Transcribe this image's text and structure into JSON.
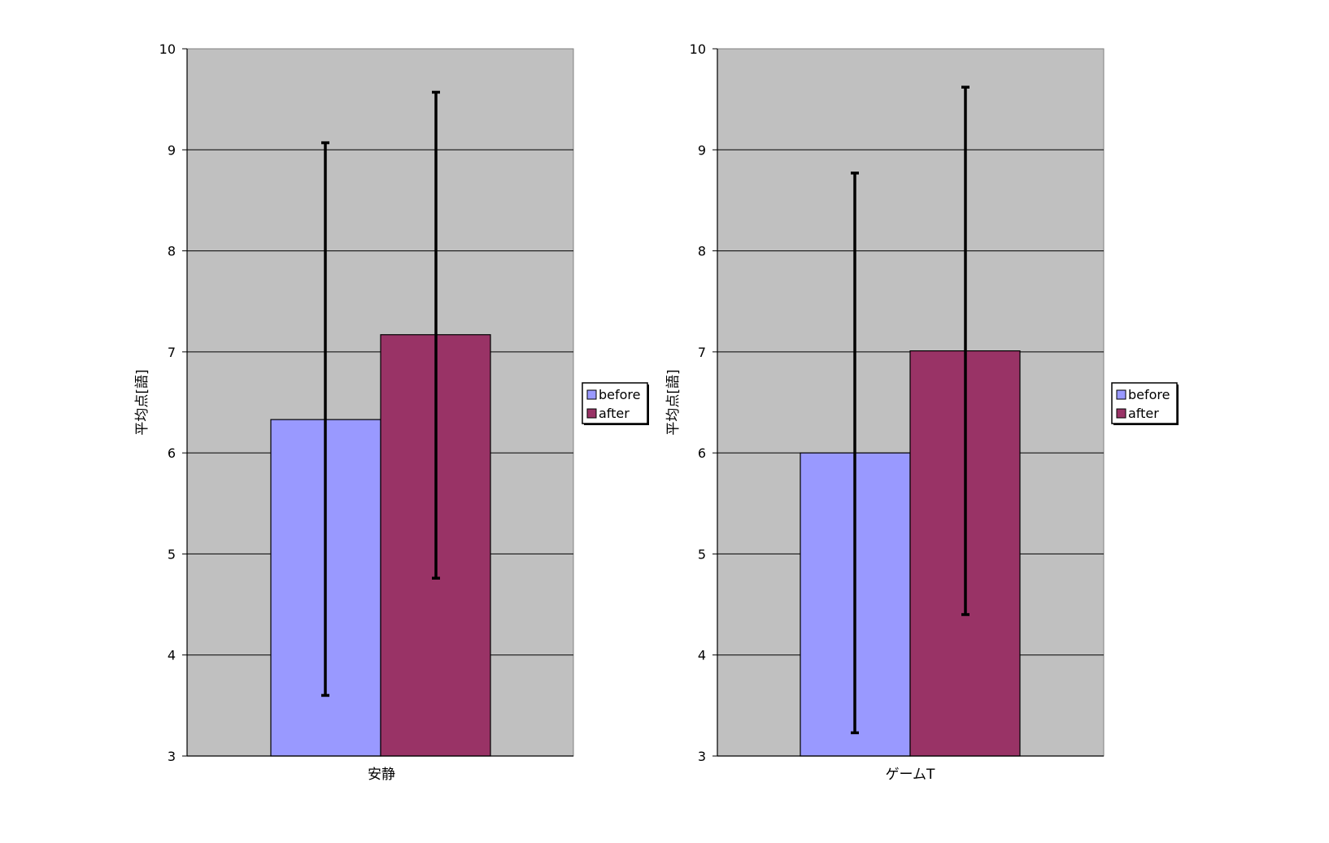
{
  "chart_data": [
    {
      "type": "bar",
      "categories": [
        "安静"
      ],
      "series": [
        {
          "name": "before",
          "values": [
            6.33
          ],
          "error_low": [
            3.6
          ],
          "error_high": [
            9.07
          ],
          "color": "#9999FF"
        },
        {
          "name": "after",
          "values": [
            7.17
          ],
          "error_low": [
            4.76
          ],
          "error_high": [
            9.57
          ],
          "color": "#993366"
        }
      ],
      "ylabel": "平均点[語]",
      "ylim": [
        3,
        10
      ],
      "yticks": [
        "3",
        "4",
        "5",
        "6",
        "7",
        "8",
        "9",
        "10"
      ],
      "grid": true,
      "plot_background": "#C0C0C0",
      "legend": "right"
    },
    {
      "type": "bar",
      "categories": [
        "ゲームT"
      ],
      "series": [
        {
          "name": "before",
          "values": [
            6.0
          ],
          "error_low": [
            3.23
          ],
          "error_high": [
            8.77
          ],
          "color": "#9999FF"
        },
        {
          "name": "after",
          "values": [
            7.01
          ],
          "error_low": [
            4.4
          ],
          "error_high": [
            9.62
          ],
          "color": "#993366"
        }
      ],
      "ylabel": "平均点[語]",
      "ylim": [
        3,
        10
      ],
      "yticks": [
        "3",
        "4",
        "5",
        "6",
        "7",
        "8",
        "9",
        "10"
      ],
      "grid": true,
      "plot_background": "#C0C0C0",
      "legend": "right"
    }
  ]
}
